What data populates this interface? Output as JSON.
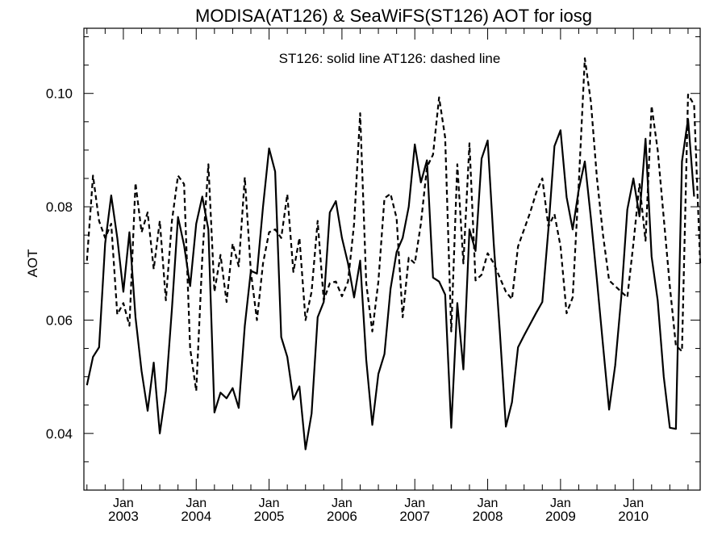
{
  "chart_data": {
    "type": "line",
    "title": "MODISA(AT126) & SeaWiFS(ST126)  AOT for iosg",
    "annotation": "ST126: solid line   AT126: dashed line",
    "ylabel": "AOT",
    "xlabel": "",
    "ylim": [
      0.03,
      0.1115
    ],
    "xlim": [
      "2002-07",
      "2010-12"
    ],
    "x_tick_labels": [
      {
        "month": "Jan",
        "year": "2003",
        "date": "2003-01"
      },
      {
        "month": "Jan",
        "year": "2004",
        "date": "2004-01"
      },
      {
        "month": "Jan",
        "year": "2005",
        "date": "2005-01"
      },
      {
        "month": "Jan",
        "year": "2006",
        "date": "2006-01"
      },
      {
        "month": "Jan",
        "year": "2007",
        "date": "2007-01"
      },
      {
        "month": "Jan",
        "year": "2008",
        "date": "2008-01"
      },
      {
        "month": "Jan",
        "year": "2009",
        "date": "2009-01"
      },
      {
        "month": "Jan",
        "year": "2010",
        "date": "2010-01"
      }
    ],
    "y_ticks": [
      0.04,
      0.06,
      0.08,
      0.1
    ],
    "y_tick_labels": [
      "0.04",
      "0.06",
      "0.08",
      "0.10"
    ],
    "grid": false,
    "series": [
      {
        "label": "ST126",
        "style": "solid",
        "color": "#000000",
        "points": [
          [
            "2002-07",
            0.0485
          ],
          [
            "2002-08",
            0.0535
          ],
          [
            "2002-09",
            0.0552
          ],
          [
            "2002-10",
            0.0735
          ],
          [
            "2002-11",
            0.082
          ],
          [
            "2002-12",
            0.0745
          ],
          [
            "2003-01",
            0.065
          ],
          [
            "2003-02",
            0.0755
          ],
          [
            "2003-03",
            0.0605
          ],
          [
            "2003-04",
            0.051
          ],
          [
            "2003-05",
            0.044
          ],
          [
            "2003-06",
            0.0525
          ],
          [
            "2003-07",
            0.04
          ],
          [
            "2003-08",
            0.0475
          ],
          [
            "2003-09",
            0.062
          ],
          [
            "2003-10",
            0.0782
          ],
          [
            "2003-11",
            0.0732
          ],
          [
            "2003-12",
            0.066
          ],
          [
            "2004-01",
            0.077
          ],
          [
            "2004-02",
            0.0818
          ],
          [
            "2004-03",
            0.076
          ],
          [
            "2004-04",
            0.0437
          ],
          [
            "2004-05",
            0.0472
          ],
          [
            "2004-06",
            0.0462
          ],
          [
            "2004-07",
            0.048
          ],
          [
            "2004-08",
            0.0445
          ],
          [
            "2004-09",
            0.059
          ],
          [
            "2004-10",
            0.0687
          ],
          [
            "2004-11",
            0.0682
          ],
          [
            "2004-12",
            0.08
          ],
          [
            "2005-01",
            0.0903
          ],
          [
            "2005-02",
            0.0862
          ],
          [
            "2005-03",
            0.057
          ],
          [
            "2005-04",
            0.0535
          ],
          [
            "2005-05",
            0.046
          ],
          [
            "2005-06",
            0.0483
          ],
          [
            "2005-07",
            0.0372
          ],
          [
            "2005-08",
            0.0435
          ],
          [
            "2005-09",
            0.0605
          ],
          [
            "2005-10",
            0.0632
          ],
          [
            "2005-11",
            0.079
          ],
          [
            "2005-12",
            0.081
          ],
          [
            "2006-01",
            0.0745
          ],
          [
            "2006-02",
            0.07
          ],
          [
            "2006-03",
            0.064
          ],
          [
            "2006-04",
            0.0705
          ],
          [
            "2006-05",
            0.053
          ],
          [
            "2006-06",
            0.0415
          ],
          [
            "2006-07",
            0.0505
          ],
          [
            "2006-08",
            0.054
          ],
          [
            "2006-09",
            0.0655
          ],
          [
            "2006-10",
            0.072
          ],
          [
            "2006-11",
            0.0745
          ],
          [
            "2006-12",
            0.08
          ],
          [
            "2007-01",
            0.091
          ],
          [
            "2007-02",
            0.0843
          ],
          [
            "2007-03",
            0.0882
          ],
          [
            "2007-04",
            0.0675
          ],
          [
            "2007-05",
            0.0668
          ],
          [
            "2007-06",
            0.0645
          ],
          [
            "2007-07",
            0.041
          ],
          [
            "2007-08",
            0.063
          ],
          [
            "2007-09",
            0.0513
          ],
          [
            "2007-10",
            0.076
          ],
          [
            "2007-11",
            0.0722
          ],
          [
            "2007-12",
            0.0885
          ],
          [
            "2008-01",
            0.0917
          ],
          [
            "2008-02",
            0.0735
          ],
          [
            "2008-03",
            0.058
          ],
          [
            "2008-04",
            0.0412
          ],
          [
            "2008-05",
            0.0455
          ],
          [
            "2008-06",
            0.0552
          ],
          [
            "2008-07",
            0.0573
          ],
          [
            "2008-08",
            0.0593
          ],
          [
            "2008-09",
            0.0613
          ],
          [
            "2008-10",
            0.0632
          ],
          [
            "2008-11",
            0.076
          ],
          [
            "2008-12",
            0.0907
          ],
          [
            "2009-01",
            0.0935
          ],
          [
            "2009-02",
            0.0817
          ],
          [
            "2009-03",
            0.076
          ],
          [
            "2009-04",
            0.083
          ],
          [
            "2009-05",
            0.088
          ],
          [
            "2009-06",
            0.078
          ],
          [
            "2009-07",
            0.067
          ],
          [
            "2009-08",
            0.0555
          ],
          [
            "2009-09",
            0.0442
          ],
          [
            "2009-10",
            0.052
          ],
          [
            "2009-11",
            0.064
          ],
          [
            "2009-12",
            0.0795
          ],
          [
            "2010-01",
            0.085
          ],
          [
            "2010-02",
            0.0783
          ],
          [
            "2010-03",
            0.092
          ],
          [
            "2010-04",
            0.0712
          ],
          [
            "2010-05",
            0.0635
          ],
          [
            "2010-06",
            0.05
          ],
          [
            "2010-07",
            0.041
          ],
          [
            "2010-08",
            0.0408
          ],
          [
            "2010-09",
            0.088
          ],
          [
            "2010-10",
            0.0955
          ],
          [
            "2010-11",
            0.0818
          ]
        ]
      },
      {
        "label": "AT126",
        "style": "dashed",
        "color": "#000000",
        "points": [
          [
            "2002-07",
            0.0705
          ],
          [
            "2002-08",
            0.0855
          ],
          [
            "2002-09",
            0.0775
          ],
          [
            "2002-10",
            0.0745
          ],
          [
            "2002-11",
            0.077
          ],
          [
            "2002-12",
            0.061
          ],
          [
            "2003-01",
            0.063
          ],
          [
            "2003-02",
            0.059
          ],
          [
            "2003-03",
            0.0842
          ],
          [
            "2003-04",
            0.0755
          ],
          [
            "2003-05",
            0.079
          ],
          [
            "2003-06",
            0.069
          ],
          [
            "2003-07",
            0.0775
          ],
          [
            "2003-08",
            0.0635
          ],
          [
            "2003-09",
            0.0775
          ],
          [
            "2003-10",
            0.0855
          ],
          [
            "2003-11",
            0.084
          ],
          [
            "2003-12",
            0.055
          ],
          [
            "2004-01",
            0.0475
          ],
          [
            "2004-02",
            0.071
          ],
          [
            "2004-03",
            0.0875
          ],
          [
            "2004-04",
            0.065
          ],
          [
            "2004-05",
            0.0715
          ],
          [
            "2004-06",
            0.0632
          ],
          [
            "2004-07",
            0.0735
          ],
          [
            "2004-08",
            0.0695
          ],
          [
            "2004-09",
            0.0852
          ],
          [
            "2004-10",
            0.0685
          ],
          [
            "2004-11",
            0.06
          ],
          [
            "2004-12",
            0.07
          ],
          [
            "2005-01",
            0.0755
          ],
          [
            "2005-02",
            0.076
          ],
          [
            "2005-03",
            0.0745
          ],
          [
            "2005-04",
            0.0822
          ],
          [
            "2005-05",
            0.0685
          ],
          [
            "2005-06",
            0.0745
          ],
          [
            "2005-07",
            0.06
          ],
          [
            "2005-08",
            0.065
          ],
          [
            "2005-09",
            0.0775
          ],
          [
            "2005-10",
            0.0635
          ],
          [
            "2005-11",
            0.0665
          ],
          [
            "2005-12",
            0.0668
          ],
          [
            "2006-01",
            0.0642
          ],
          [
            "2006-02",
            0.0668
          ],
          [
            "2006-03",
            0.077
          ],
          [
            "2006-04",
            0.0965
          ],
          [
            "2006-05",
            0.0665
          ],
          [
            "2006-06",
            0.058
          ],
          [
            "2006-07",
            0.0668
          ],
          [
            "2006-08",
            0.0815
          ],
          [
            "2006-09",
            0.0823
          ],
          [
            "2006-10",
            0.078
          ],
          [
            "2006-11",
            0.0605
          ],
          [
            "2006-12",
            0.071
          ],
          [
            "2007-01",
            0.07
          ],
          [
            "2007-02",
            0.077
          ],
          [
            "2007-03",
            0.087
          ],
          [
            "2007-04",
            0.0892
          ],
          [
            "2007-05",
            0.0993
          ],
          [
            "2007-06",
            0.0922
          ],
          [
            "2007-07",
            0.058
          ],
          [
            "2007-08",
            0.0875
          ],
          [
            "2007-09",
            0.07
          ],
          [
            "2007-10",
            0.0912
          ],
          [
            "2007-11",
            0.067
          ],
          [
            "2007-12",
            0.068
          ],
          [
            "2008-01",
            0.0718
          ],
          [
            "2008-02",
            0.07
          ],
          [
            "2008-03",
            0.0675
          ],
          [
            "2008-04",
            0.065
          ],
          [
            "2008-05",
            0.0637
          ],
          [
            "2008-06",
            0.073
          ],
          [
            "2008-07",
            0.076
          ],
          [
            "2008-08",
            0.079
          ],
          [
            "2008-09",
            0.0825
          ],
          [
            "2008-10",
            0.085
          ],
          [
            "2008-11",
            0.0765
          ],
          [
            "2008-12",
            0.0787
          ],
          [
            "2009-01",
            0.073
          ],
          [
            "2009-02",
            0.0612
          ],
          [
            "2009-03",
            0.064
          ],
          [
            "2009-04",
            0.084
          ],
          [
            "2009-05",
            0.1062
          ],
          [
            "2009-06",
            0.0985
          ],
          [
            "2009-07",
            0.085
          ],
          [
            "2009-08",
            0.075
          ],
          [
            "2009-09",
            0.067
          ],
          [
            "2009-10",
            0.066
          ],
          [
            "2009-11",
            0.065
          ],
          [
            "2009-12",
            0.064
          ],
          [
            "2010-01",
            0.0735
          ],
          [
            "2010-02",
            0.084
          ],
          [
            "2010-03",
            0.074
          ],
          [
            "2010-04",
            0.0978
          ],
          [
            "2010-05",
            0.09
          ],
          [
            "2010-06",
            0.078
          ],
          [
            "2010-07",
            0.066
          ],
          [
            "2010-08",
            0.0555
          ],
          [
            "2010-09",
            0.0545
          ],
          [
            "2010-10",
            0.0998
          ],
          [
            "2010-11",
            0.098
          ],
          [
            "2010-12",
            0.07
          ]
        ]
      }
    ]
  }
}
